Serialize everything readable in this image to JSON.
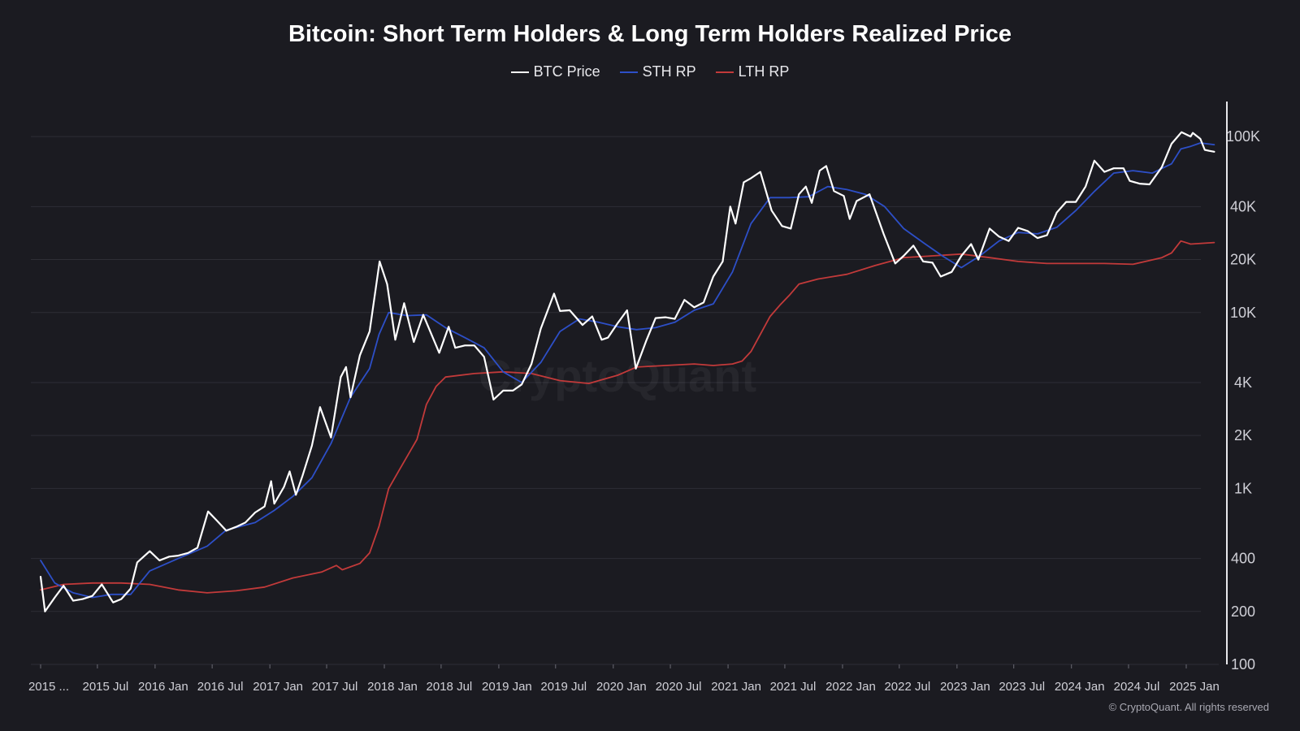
{
  "title": "Bitcoin: Short Term Holders & Long Term Holders Realized Price",
  "legend": [
    {
      "label": "BTC Price",
      "color": "#ffffff"
    },
    {
      "label": "STH RP",
      "color": "#2d4fc7"
    },
    {
      "label": "LTH RP",
      "color": "#c23a3a"
    }
  ],
  "watermark": "CryptoQuant",
  "footer": "© CryptoQuant. All rights reserved",
  "colors": {
    "background": "#1b1b21",
    "grid": "#2e2e36",
    "axis": "#e8e8ec"
  },
  "chart_data": {
    "type": "line",
    "title": "Bitcoin: Short Term Holders & Long Term Holders Realized Price",
    "xlabel": "",
    "ylabel": "",
    "y_scale": "log",
    "ylim": [
      100,
      150000
    ],
    "xlim": [
      "2015-01-01",
      "2025-03-31"
    ],
    "grid": true,
    "legend_position": "top-center",
    "x_ticks": [
      "2015 ...",
      "2015 Jul",
      "2016 Jan",
      "2016 Jul",
      "2017 Jan",
      "2017 Jul",
      "2018 Jan",
      "2018 Jul",
      "2019 Jan",
      "2019 Jul",
      "2020 Jan",
      "2020 Jul",
      "2021 Jan",
      "2021 Jul",
      "2022 Jan",
      "2022 Jul",
      "2023 Jan",
      "2023 Jul",
      "2024 Jan",
      "2024 Jul",
      "2025 Jan"
    ],
    "x_tick_dates": [
      "2015-01-01",
      "2015-07-01",
      "2016-01-01",
      "2016-07-01",
      "2017-01-01",
      "2017-07-01",
      "2018-01-01",
      "2018-07-01",
      "2019-01-01",
      "2019-07-01",
      "2020-01-01",
      "2020-07-01",
      "2021-01-01",
      "2021-07-01",
      "2022-01-01",
      "2022-07-01",
      "2023-01-01",
      "2023-07-01",
      "2024-01-01",
      "2024-07-01",
      "2025-01-01"
    ],
    "y_ticks": [
      {
        "value": 100,
        "label": "100"
      },
      {
        "value": 200,
        "label": "200"
      },
      {
        "value": 400,
        "label": "400"
      },
      {
        "value": 1000,
        "label": "1K"
      },
      {
        "value": 2000,
        "label": "2K"
      },
      {
        "value": 4000,
        "label": "4K"
      },
      {
        "value": 10000,
        "label": "10K"
      },
      {
        "value": 20000,
        "label": "20K"
      },
      {
        "value": 40000,
        "label": "40K"
      },
      {
        "value": 100000,
        "label": "100K"
      }
    ],
    "series": [
      {
        "name": "BTC Price",
        "color": "#ffffff",
        "points": [
          [
            "2015-01-01",
            315
          ],
          [
            "2015-01-15",
            200
          ],
          [
            "2015-02-15",
            240
          ],
          [
            "2015-03-15",
            280
          ],
          [
            "2015-04-15",
            230
          ],
          [
            "2015-05-15",
            235
          ],
          [
            "2015-06-15",
            245
          ],
          [
            "2015-07-15",
            285
          ],
          [
            "2015-08-20",
            225
          ],
          [
            "2015-09-15",
            235
          ],
          [
            "2015-10-15",
            270
          ],
          [
            "2015-11-05",
            380
          ],
          [
            "2015-12-15",
            440
          ],
          [
            "2016-01-15",
            390
          ],
          [
            "2016-02-15",
            410
          ],
          [
            "2016-03-15",
            415
          ],
          [
            "2016-04-15",
            430
          ],
          [
            "2016-05-15",
            460
          ],
          [
            "2016-06-18",
            740
          ],
          [
            "2016-07-15",
            660
          ],
          [
            "2016-08-15",
            575
          ],
          [
            "2016-09-15",
            605
          ],
          [
            "2016-10-15",
            640
          ],
          [
            "2016-11-15",
            730
          ],
          [
            "2016-12-15",
            790
          ],
          [
            "2017-01-05",
            1100
          ],
          [
            "2017-01-15",
            820
          ],
          [
            "2017-02-15",
            1020
          ],
          [
            "2017-03-05",
            1250
          ],
          [
            "2017-03-25",
            920
          ],
          [
            "2017-04-15",
            1180
          ],
          [
            "2017-05-15",
            1750
          ],
          [
            "2017-06-10",
            2900
          ],
          [
            "2017-07-15",
            1950
          ],
          [
            "2017-08-15",
            4300
          ],
          [
            "2017-09-01",
            4900
          ],
          [
            "2017-09-15",
            3300
          ],
          [
            "2017-10-15",
            5700
          ],
          [
            "2017-11-15",
            7800
          ],
          [
            "2017-12-17",
            19500
          ],
          [
            "2018-01-10",
            14500
          ],
          [
            "2018-02-05",
            7000
          ],
          [
            "2018-03-05",
            11300
          ],
          [
            "2018-04-05",
            6800
          ],
          [
            "2018-05-05",
            9700
          ],
          [
            "2018-06-25",
            5900
          ],
          [
            "2018-07-25",
            8300
          ],
          [
            "2018-08-15",
            6300
          ],
          [
            "2018-09-15",
            6500
          ],
          [
            "2018-10-15",
            6500
          ],
          [
            "2018-11-15",
            5600
          ],
          [
            "2018-12-15",
            3200
          ],
          [
            "2019-01-15",
            3600
          ],
          [
            "2019-02-15",
            3600
          ],
          [
            "2019-03-15",
            3900
          ],
          [
            "2019-04-15",
            5100
          ],
          [
            "2019-05-15",
            8100
          ],
          [
            "2019-06-26",
            12800
          ],
          [
            "2019-07-15",
            10200
          ],
          [
            "2019-08-15",
            10300
          ],
          [
            "2019-09-25",
            8500
          ],
          [
            "2019-10-26",
            9500
          ],
          [
            "2019-11-25",
            7000
          ],
          [
            "2019-12-15",
            7200
          ],
          [
            "2020-01-15",
            8700
          ],
          [
            "2020-02-14",
            10300
          ],
          [
            "2020-03-13",
            4800
          ],
          [
            "2020-04-15",
            6900
          ],
          [
            "2020-05-15",
            9300
          ],
          [
            "2020-06-15",
            9400
          ],
          [
            "2020-07-15",
            9200
          ],
          [
            "2020-08-15",
            11800
          ],
          [
            "2020-09-15",
            10700
          ],
          [
            "2020-10-15",
            11400
          ],
          [
            "2020-11-15",
            16000
          ],
          [
            "2020-12-15",
            19500
          ],
          [
            "2021-01-08",
            40000
          ],
          [
            "2021-01-25",
            32000
          ],
          [
            "2021-02-20",
            55000
          ],
          [
            "2021-03-15",
            58000
          ],
          [
            "2021-04-14",
            63000
          ],
          [
            "2021-05-20",
            38000
          ],
          [
            "2021-06-22",
            31000
          ],
          [
            "2021-07-20",
            30000
          ],
          [
            "2021-08-15",
            47000
          ],
          [
            "2021-09-06",
            52000
          ],
          [
            "2021-09-25",
            42000
          ],
          [
            "2021-10-20",
            64000
          ],
          [
            "2021-11-10",
            68000
          ],
          [
            "2021-12-05",
            49000
          ],
          [
            "2022-01-05",
            46000
          ],
          [
            "2022-01-24",
            34000
          ],
          [
            "2022-02-15",
            43000
          ],
          [
            "2022-03-28",
            47000
          ],
          [
            "2022-05-12",
            28000
          ],
          [
            "2022-06-18",
            19000
          ],
          [
            "2022-07-15",
            21000
          ],
          [
            "2022-08-15",
            24000
          ],
          [
            "2022-09-15",
            19500
          ],
          [
            "2022-10-15",
            19200
          ],
          [
            "2022-11-10",
            16000
          ],
          [
            "2022-12-15",
            17000
          ],
          [
            "2023-01-15",
            21000
          ],
          [
            "2023-02-15",
            24500
          ],
          [
            "2023-03-10",
            20000
          ],
          [
            "2023-04-15",
            30000
          ],
          [
            "2023-05-15",
            27000
          ],
          [
            "2023-06-15",
            25500
          ],
          [
            "2023-07-15",
            30300
          ],
          [
            "2023-08-15",
            29000
          ],
          [
            "2023-09-15",
            26500
          ],
          [
            "2023-10-15",
            27500
          ],
          [
            "2023-11-15",
            37000
          ],
          [
            "2023-12-15",
            42500
          ],
          [
            "2024-01-15",
            42500
          ],
          [
            "2024-02-15",
            52000
          ],
          [
            "2024-03-14",
            73000
          ],
          [
            "2024-04-15",
            63000
          ],
          [
            "2024-05-15",
            66000
          ],
          [
            "2024-06-15",
            66000
          ],
          [
            "2024-07-05",
            56000
          ],
          [
            "2024-08-05",
            54000
          ],
          [
            "2024-09-06",
            53500
          ],
          [
            "2024-10-15",
            67000
          ],
          [
            "2024-11-15",
            91000
          ],
          [
            "2024-12-17",
            106000
          ],
          [
            "2025-01-15",
            100000
          ],
          [
            "2025-01-22",
            105000
          ],
          [
            "2025-02-15",
            97000
          ],
          [
            "2025-03-01",
            84000
          ],
          [
            "2025-03-15",
            83000
          ],
          [
            "2025-03-31",
            82000
          ]
        ]
      },
      {
        "name": "STH RP",
        "color": "#2d4fc7",
        "points": [
          [
            "2015-01-01",
            390
          ],
          [
            "2015-02-15",
            290
          ],
          [
            "2015-04-15",
            255
          ],
          [
            "2015-06-15",
            240
          ],
          [
            "2015-08-15",
            250
          ],
          [
            "2015-10-15",
            250
          ],
          [
            "2015-12-15",
            340
          ],
          [
            "2016-03-15",
            400
          ],
          [
            "2016-06-15",
            470
          ],
          [
            "2016-08-15",
            580
          ],
          [
            "2016-11-15",
            640
          ],
          [
            "2017-01-15",
            750
          ],
          [
            "2017-03-15",
            900
          ],
          [
            "2017-05-15",
            1150
          ],
          [
            "2017-07-15",
            1800
          ],
          [
            "2017-09-15",
            3300
          ],
          [
            "2017-11-15",
            4800
          ],
          [
            "2017-12-15",
            7500
          ],
          [
            "2018-01-15",
            10000
          ],
          [
            "2018-03-15",
            9600
          ],
          [
            "2018-05-15",
            9700
          ],
          [
            "2018-07-15",
            8200
          ],
          [
            "2018-09-15",
            7200
          ],
          [
            "2018-11-15",
            6300
          ],
          [
            "2019-01-15",
            4600
          ],
          [
            "2019-03-15",
            4000
          ],
          [
            "2019-05-15",
            5200
          ],
          [
            "2019-07-15",
            7800
          ],
          [
            "2019-09-15",
            9200
          ],
          [
            "2019-11-15",
            8800
          ],
          [
            "2020-01-15",
            8300
          ],
          [
            "2020-03-15",
            8000
          ],
          [
            "2020-05-15",
            8200
          ],
          [
            "2020-07-15",
            8800
          ],
          [
            "2020-09-15",
            10300
          ],
          [
            "2020-11-15",
            11200
          ],
          [
            "2021-01-15",
            17000
          ],
          [
            "2021-03-15",
            32000
          ],
          [
            "2021-05-15",
            45000
          ],
          [
            "2021-07-15",
            45000
          ],
          [
            "2021-09-15",
            45500
          ],
          [
            "2021-11-15",
            52000
          ],
          [
            "2022-01-15",
            50000
          ],
          [
            "2022-03-15",
            47000
          ],
          [
            "2022-05-15",
            40000
          ],
          [
            "2022-07-15",
            30000
          ],
          [
            "2022-09-15",
            25000
          ],
          [
            "2022-11-15",
            21000
          ],
          [
            "2023-01-15",
            18000
          ],
          [
            "2023-03-15",
            21000
          ],
          [
            "2023-05-15",
            25500
          ],
          [
            "2023-07-15",
            28500
          ],
          [
            "2023-09-15",
            28000
          ],
          [
            "2023-11-15",
            30500
          ],
          [
            "2024-01-15",
            38000
          ],
          [
            "2024-03-15",
            49000
          ],
          [
            "2024-05-15",
            62000
          ],
          [
            "2024-07-15",
            64000
          ],
          [
            "2024-09-15",
            62000
          ],
          [
            "2024-11-15",
            70000
          ],
          [
            "2024-12-15",
            85000
          ],
          [
            "2025-01-15",
            88000
          ],
          [
            "2025-02-15",
            92000
          ],
          [
            "2025-03-31",
            90000
          ]
        ]
      },
      {
        "name": "LTH RP",
        "color": "#c23a3a",
        "points": [
          [
            "2015-01-01",
            265
          ],
          [
            "2015-03-15",
            285
          ],
          [
            "2015-06-15",
            290
          ],
          [
            "2015-09-15",
            290
          ],
          [
            "2015-12-15",
            285
          ],
          [
            "2016-03-15",
            265
          ],
          [
            "2016-06-15",
            255
          ],
          [
            "2016-09-15",
            262
          ],
          [
            "2016-12-15",
            275
          ],
          [
            "2017-03-15",
            310
          ],
          [
            "2017-06-15",
            335
          ],
          [
            "2017-08-01",
            365
          ],
          [
            "2017-08-20",
            345
          ],
          [
            "2017-10-15",
            375
          ],
          [
            "2017-11-15",
            430
          ],
          [
            "2017-12-15",
            610
          ],
          [
            "2018-01-15",
            1000
          ],
          [
            "2018-02-15",
            1250
          ],
          [
            "2018-04-15",
            1900
          ],
          [
            "2018-05-15",
            3000
          ],
          [
            "2018-06-15",
            3800
          ],
          [
            "2018-07-15",
            4300
          ],
          [
            "2018-10-15",
            4500
          ],
          [
            "2019-01-15",
            4600
          ],
          [
            "2019-04-15",
            4500
          ],
          [
            "2019-07-15",
            4100
          ],
          [
            "2019-10-15",
            3950
          ],
          [
            "2020-01-15",
            4400
          ],
          [
            "2020-03-15",
            4900
          ],
          [
            "2020-06-15",
            5000
          ],
          [
            "2020-09-15",
            5100
          ],
          [
            "2020-11-15",
            5000
          ],
          [
            "2021-01-15",
            5100
          ],
          [
            "2021-02-15",
            5300
          ],
          [
            "2021-03-15",
            6000
          ],
          [
            "2021-05-15",
            9500
          ],
          [
            "2021-06-15",
            11000
          ],
          [
            "2021-07-15",
            12500
          ],
          [
            "2021-08-15",
            14500
          ],
          [
            "2021-10-15",
            15500
          ],
          [
            "2022-01-15",
            16500
          ],
          [
            "2022-04-15",
            18500
          ],
          [
            "2022-07-15",
            20500
          ],
          [
            "2022-10-15",
            21000
          ],
          [
            "2023-01-15",
            21500
          ],
          [
            "2023-04-15",
            20500
          ],
          [
            "2023-07-15",
            19500
          ],
          [
            "2023-10-15",
            19000
          ],
          [
            "2024-01-15",
            19000
          ],
          [
            "2024-04-15",
            19000
          ],
          [
            "2024-07-15",
            18800
          ],
          [
            "2024-10-15",
            20500
          ],
          [
            "2024-11-15",
            21800
          ],
          [
            "2024-12-15",
            25500
          ],
          [
            "2025-01-15",
            24500
          ],
          [
            "2025-03-31",
            25000
          ]
        ]
      }
    ]
  }
}
